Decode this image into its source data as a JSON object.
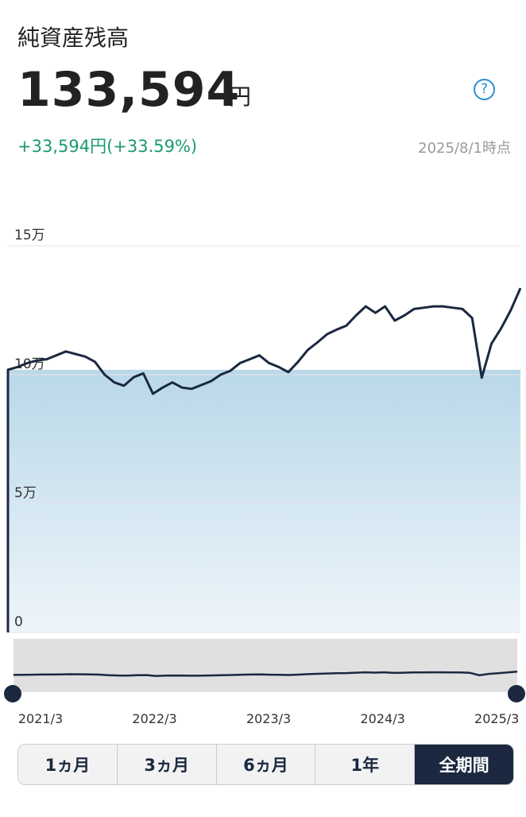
{
  "header": {
    "title": "純資産残高",
    "value": "133,594",
    "unit": "円",
    "help_icon": "?",
    "change": "+33,594円(+33.59%)",
    "as_of": "2025/8/1時点"
  },
  "chart_data": {
    "type": "line",
    "categories": [
      "2021/3",
      null,
      null,
      null,
      null,
      null,
      null,
      null,
      null,
      null,
      null,
      null,
      "2022/3",
      null,
      null,
      null,
      null,
      null,
      null,
      null,
      null,
      null,
      null,
      null,
      "2023/3",
      null,
      null,
      null,
      null,
      null,
      null,
      null,
      null,
      null,
      null,
      null,
      "2024/3",
      null,
      null,
      null,
      null,
      null,
      null,
      null,
      null,
      null,
      null,
      null,
      "2025/3",
      null,
      null,
      null,
      null,
      null
    ],
    "values": [
      101900,
      103000,
      104500,
      105500,
      106000,
      107500,
      109000,
      108000,
      107000,
      105000,
      100000,
      97000,
      95700,
      99000,
      100500,
      92600,
      95000,
      97000,
      95000,
      94500,
      96000,
      97500,
      100000,
      101500,
      104500,
      106000,
      107500,
      104500,
      103000,
      101000,
      105000,
      109600,
      112500,
      115700,
      117500,
      119000,
      123000,
      126500,
      124000,
      126500,
      121000,
      123000,
      125500,
      126000,
      126500,
      126500,
      126000,
      125500,
      122000,
      98800,
      112000,
      118000,
      125000,
      133594
    ],
    "color": "#1b2840",
    "fill_color": "#b9d8e9",
    "ylim": [
      0,
      150000
    ],
    "yticks": [
      0,
      {
        "value": 50000,
        "label": "5万"
      },
      {
        "value": 100000,
        "label": "10万"
      },
      {
        "value": 150000,
        "label": "15万"
      }
    ],
    "grid": true
  },
  "range_buttons": {
    "labels": [
      "1ヵ月",
      "3ヵ月",
      "6ヵ月",
      "1年",
      "全期間"
    ],
    "selected": 4
  }
}
